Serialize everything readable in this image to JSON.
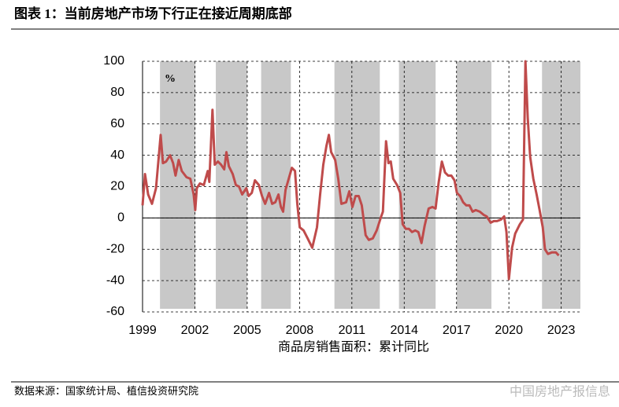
{
  "chart_data": {
    "type": "line",
    "title": "图表 1：当前房地产市场下行正在接近周期底部",
    "xlabel": "商品房销售面积：累计同比",
    "unit_label": "%",
    "source": "数据来源：国家统计局、植信投资研究院",
    "watermark": "中国房地产报信息",
    "xlim": [
      1999,
      2024.1
    ],
    "xticks": [
      1999,
      2002,
      2005,
      2008,
      2011,
      2014,
      2017,
      2020,
      2023
    ],
    "ylim": [
      -60,
      100
    ],
    "yticks": [
      -60,
      -40,
      -20,
      0,
      20,
      40,
      60,
      80,
      100
    ],
    "grid": true,
    "shaded_periods": [
      [
        2000,
        2002.03
      ],
      [
        2003.2,
        2005
      ],
      [
        2005.8,
        2007.5
      ],
      [
        2010,
        2012.6
      ],
      [
        2013.7,
        2015.8
      ],
      [
        2017,
        2019
      ],
      [
        2021.9,
        2024.1
      ]
    ],
    "shade_color": "#c8c8c8",
    "series": [
      {
        "color": "#bf4b4b",
        "x": [
          1999.0,
          1999.14,
          1999.32,
          1999.54,
          1999.77,
          2000.04,
          2000.17,
          2000.35,
          2000.58,
          2000.75,
          2000.89,
          2001.07,
          2001.25,
          2001.52,
          2001.74,
          2001.93,
          2002.02,
          2002.11,
          2002.29,
          2002.51,
          2002.74,
          2002.83,
          2003.01,
          2003.14,
          2003.32,
          2003.5,
          2003.68,
          2003.81,
          2003.95,
          2004.17,
          2004.35,
          2004.53,
          2004.71,
          2004.95,
          2005.08,
          2005.26,
          2005.44,
          2005.67,
          2005.85,
          2006.03,
          2006.25,
          2006.43,
          2006.61,
          2006.79,
          2006.93,
          2007.06,
          2007.2,
          2007.38,
          2007.56,
          2007.74,
          2007.87,
          2008.01,
          2008.23,
          2008.46,
          2008.73,
          2009.0,
          2009.18,
          2009.36,
          2009.54,
          2009.68,
          2009.81,
          2010.04,
          2010.22,
          2010.4,
          2010.67,
          2010.85,
          2011.03,
          2011.21,
          2011.39,
          2011.57,
          2011.79,
          2011.97,
          2012.2,
          2012.42,
          2012.65,
          2012.78,
          2012.96,
          2013.1,
          2013.23,
          2013.37,
          2013.59,
          2013.77,
          2013.91,
          2014.09,
          2014.27,
          2014.45,
          2014.63,
          2014.81,
          2014.99,
          2015.17,
          2015.4,
          2015.62,
          2015.8,
          2015.98,
          2016.16,
          2016.34,
          2016.52,
          2016.7,
          2016.88,
          2017.02,
          2017.2,
          2017.38,
          2017.56,
          2017.74,
          2017.92,
          2018.1,
          2018.33,
          2018.55,
          2018.73,
          2018.96,
          2019.14,
          2019.32,
          2019.55,
          2019.73,
          2019.86,
          2020.0,
          2020.18,
          2020.36,
          2020.63,
          2020.81,
          2020.95,
          2021.08,
          2021.22,
          2021.4,
          2021.59,
          2021.76,
          2021.94,
          2022.07,
          2022.24,
          2022.47,
          2022.69,
          2022.86
        ],
        "values": [
          8,
          28,
          15,
          9,
          19,
          53,
          35,
          36,
          40,
          35,
          27,
          37,
          30,
          26,
          25,
          15,
          5,
          19,
          22,
          21,
          30,
          23,
          69,
          34,
          36,
          34,
          31,
          42,
          33,
          28,
          21,
          20,
          15,
          19,
          14,
          16,
          24,
          21,
          14,
          9,
          16,
          9,
          10,
          15,
          7,
          4,
          18,
          25,
          32,
          30,
          9,
          -6,
          -8,
          -13,
          -19,
          -6,
          15,
          34,
          46,
          53,
          42,
          37,
          25,
          9,
          10,
          17,
          7,
          14,
          14,
          8,
          -11,
          -14,
          -13,
          -8,
          0,
          4,
          49,
          35,
          36,
          25,
          21,
          16,
          -4,
          -7,
          -7,
          -9,
          -8,
          -9,
          -16,
          -5,
          6,
          7,
          6,
          23,
          36,
          29,
          27,
          27,
          24,
          16,
          14,
          10,
          8,
          8,
          4,
          5,
          4,
          2,
          1,
          -3,
          -2,
          -2,
          -1,
          1,
          -9,
          -39,
          -19,
          -10,
          -4,
          -1,
          100,
          64,
          39,
          25,
          15,
          5,
          -6,
          -20,
          -23,
          -22,
          -22,
          -24
        ]
      }
    ]
  }
}
